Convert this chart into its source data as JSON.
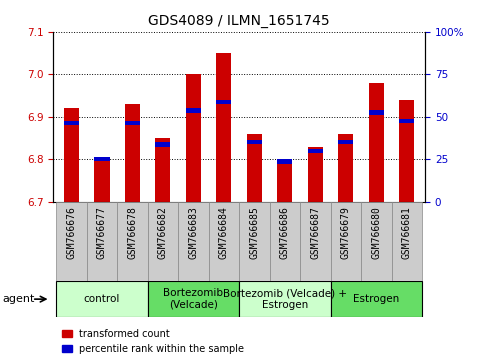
{
  "title": "GDS4089 / ILMN_1651745",
  "samples": [
    "GSM766676",
    "GSM766677",
    "GSM766678",
    "GSM766682",
    "GSM766683",
    "GSM766684",
    "GSM766685",
    "GSM766686",
    "GSM766687",
    "GSM766679",
    "GSM766680",
    "GSM766681"
  ],
  "red_values": [
    6.92,
    6.8,
    6.93,
    6.85,
    7.0,
    7.05,
    6.86,
    6.79,
    6.83,
    6.86,
    6.98,
    6.94
  ],
  "blue_values": [
    6.885,
    6.8,
    6.885,
    6.835,
    6.915,
    6.935,
    6.84,
    6.795,
    6.82,
    6.84,
    6.91,
    6.89
  ],
  "ylim_left": [
    6.7,
    7.1
  ],
  "ylim_right": [
    0,
    100
  ],
  "yticks_left": [
    6.7,
    6.8,
    6.9,
    7.0,
    7.1
  ],
  "yticks_right": [
    0,
    25,
    50,
    75,
    100
  ],
  "ytick_labels_right": [
    "0",
    "25",
    "50",
    "75",
    "100%"
  ],
  "groups": [
    {
      "label": "control",
      "start": 0,
      "end": 3,
      "color": "#ccffcc"
    },
    {
      "label": "Bortezomib\n(Velcade)",
      "start": 3,
      "end": 6,
      "color": "#66dd66"
    },
    {
      "label": "Bortezomib (Velcade) +\nEstrogen",
      "start": 6,
      "end": 9,
      "color": "#ccffcc"
    },
    {
      "label": "Estrogen",
      "start": 9,
      "end": 12,
      "color": "#66dd66"
    }
  ],
  "agent_label": "agent",
  "legend_red": "transformed count",
  "legend_blue": "percentile rank within the sample",
  "bar_width": 0.5,
  "bar_color_red": "#cc0000",
  "bar_color_blue": "#0000cc",
  "base_value": 6.7,
  "bg_color": "#ffffff",
  "tick_color_left": "#cc0000",
  "tick_color_right": "#0000cc",
  "title_fontsize": 10,
  "tick_fontsize": 7.5,
  "sample_fontsize": 7,
  "group_fontsize": 7.5
}
